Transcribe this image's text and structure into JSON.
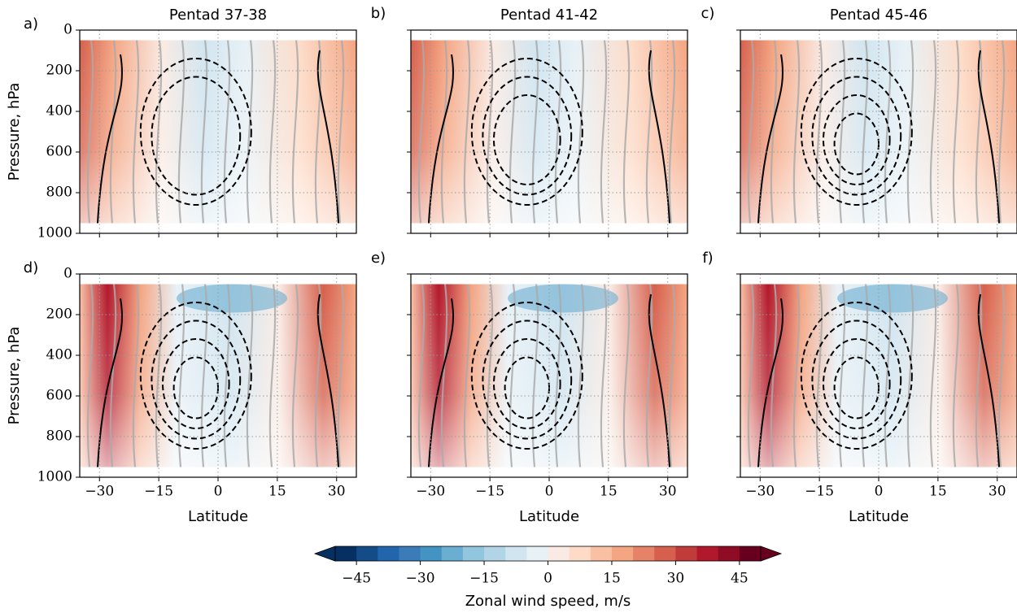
{
  "chart_data": [
    {
      "type": "contour",
      "panel_label": "a)",
      "title": "Pentad 37-38",
      "ylabel": "Pressure, hPa",
      "xlim": [
        -35,
        35
      ],
      "ylim": [
        1000,
        0
      ],
      "xticks": [
        -30,
        -15,
        0,
        15,
        30
      ],
      "yticks": [
        0,
        200,
        400,
        600,
        800,
        1000
      ],
      "grid": true
    },
    {
      "type": "contour",
      "panel_label": "b)",
      "title": "Pentad 41-42",
      "xlim": [
        -35,
        35
      ],
      "ylim": [
        1000,
        0
      ],
      "xticks": [
        -30,
        -15,
        0,
        15,
        30
      ],
      "yticks": [
        0,
        200,
        400,
        600,
        800,
        1000
      ],
      "grid": true
    },
    {
      "type": "contour",
      "panel_label": "c)",
      "title": "Pentad 45-46",
      "xlim": [
        -35,
        35
      ],
      "ylim": [
        1000,
        0
      ],
      "xticks": [
        -30,
        -15,
        0,
        15,
        30
      ],
      "yticks": [
        0,
        200,
        400,
        600,
        800,
        1000
      ],
      "grid": true
    },
    {
      "type": "contour",
      "panel_label": "d)",
      "ylabel": "Pressure, hPa",
      "xlabel": "Latitude",
      "xlim": [
        -35,
        35
      ],
      "ylim": [
        1000,
        0
      ],
      "xticks": [
        {
          "value": -30,
          "label": "−30"
        },
        {
          "value": -15,
          "label": "−15"
        },
        0,
        15,
        30
      ],
      "yticks": [
        0,
        200,
        400,
        600,
        800,
        1000
      ],
      "grid": true
    },
    {
      "type": "contour",
      "panel_label": "e)",
      "xlabel": "Latitude",
      "xlim": [
        -35,
        35
      ],
      "ylim": [
        1000,
        0
      ],
      "xticks": [
        {
          "value": -30,
          "label": "−30"
        },
        {
          "value": -15,
          "label": "−15"
        },
        0,
        15,
        30
      ],
      "yticks": [
        0,
        200,
        400,
        600,
        800,
        1000
      ],
      "grid": true
    },
    {
      "type": "contour",
      "panel_label": "f)",
      "xlabel": "Latitude",
      "xlim": [
        -35,
        35
      ],
      "ylim": [
        1000,
        0
      ],
      "xticks": [
        {
          "value": -30,
          "label": "−30"
        },
        {
          "value": -15,
          "label": "−15"
        },
        0,
        15,
        30
      ],
      "yticks": [
        0,
        200,
        400,
        600,
        800,
        1000
      ],
      "grid": true
    },
    {
      "type": "colorbar",
      "label": "Zonal wind speed, m/s",
      "xlim": [
        -50,
        50
      ],
      "xticks": [
        {
          "value": -45,
          "label": "−45"
        },
        {
          "value": -30,
          "label": "−30"
        },
        {
          "value": -15,
          "label": "−15"
        },
        0,
        15,
        30,
        45
      ],
      "colors": [
        "#053061",
        "#134c87",
        "#2166ac",
        "#3a7bb8",
        "#4393c3",
        "#6aaed1",
        "#92c5de",
        "#b1d5e7",
        "#d1e5f0",
        "#e8f1f6",
        "#f9ebe4",
        "#fddbc7",
        "#f9c0a4",
        "#f4a582",
        "#e58268",
        "#d6604d",
        "#c23b3b",
        "#b2182b",
        "#8e0d25",
        "#67001f"
      ]
    }
  ]
}
